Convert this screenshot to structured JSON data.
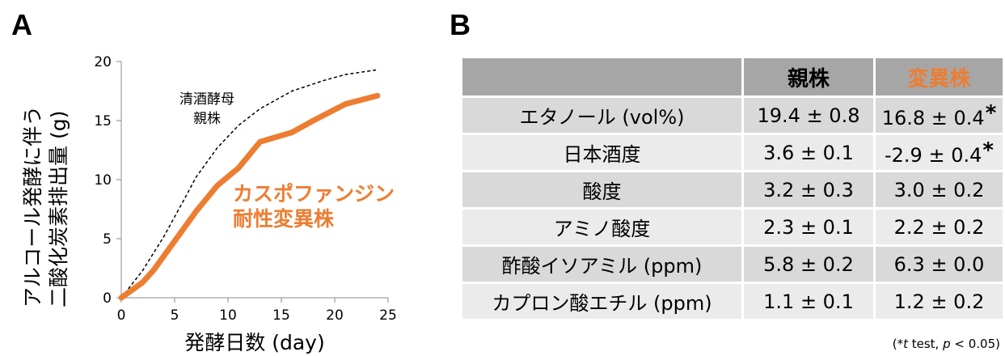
{
  "panel_a_label": "A",
  "panel_b_label": "B",
  "chart_data": {
    "type": "line",
    "xlabel": "発酵日数 (day)",
    "ylabel_lines": [
      "アルコール発酵に伴う",
      "二酸化炭素排出量 (g)"
    ],
    "xlim": [
      0,
      25
    ],
    "ylim": [
      0,
      20
    ],
    "xticks": [
      0,
      5,
      10,
      15,
      20,
      25
    ],
    "yticks": [
      0,
      5,
      10,
      15,
      20
    ],
    "grid": false,
    "series": [
      {
        "name": "清酒酵母 親株",
        "label_lines": [
          "清酒酵母",
          "親株"
        ],
        "style": "dashed",
        "color": "#000000",
        "x": [
          0,
          2,
          4,
          6,
          7,
          9,
          11,
          13,
          16,
          19,
          21,
          24
        ],
        "y": [
          0,
          2.3,
          5.2,
          8.5,
          10.2,
          12.7,
          14.6,
          16.0,
          17.5,
          18.4,
          18.9,
          19.3
        ]
      },
      {
        "name": "カスポファンジン 耐性変異株",
        "label_lines": [
          "カスポファンジン",
          "耐性変異株"
        ],
        "style": "solid",
        "color": "#ed7d31",
        "x": [
          0,
          2,
          3,
          5,
          7,
          9,
          11,
          13,
          16,
          18,
          21,
          24
        ],
        "y": [
          0,
          1.3,
          2.3,
          4.8,
          7.3,
          9.5,
          11.0,
          13.2,
          14.0,
          15.0,
          16.4,
          17.1
        ]
      }
    ]
  },
  "table": {
    "header": [
      "",
      "親株",
      "変異株"
    ],
    "rows": [
      {
        "label": "エタノール (vol%)",
        "parent": "19.4 ± 0.8",
        "mutant": "16.8 ± 0.4",
        "mark": "*"
      },
      {
        "label": "日本酒度",
        "parent": "3.6 ± 0.1",
        "mutant": "-2.9 ± 0.4",
        "mark": "*"
      },
      {
        "label": "酸度",
        "parent": "3.2 ± 0.3",
        "mutant": "3.0 ± 0.2",
        "mark": ""
      },
      {
        "label": "アミノ酸度",
        "parent": "2.3 ± 0.1",
        "mutant": "2.2 ± 0.2",
        "mark": ""
      },
      {
        "label": "酢酸イソアミル (ppm)",
        "parent": "5.8 ± 0.2",
        "mutant": "6.3 ± 0.0",
        "mark": ""
      },
      {
        "label": "カプロン酸エチル (ppm)",
        "parent": "1.1 ± 0.1",
        "mutant": "1.2 ± 0.2",
        "mark": ""
      }
    ],
    "footnote": {
      "pre": "(*",
      "t": "t",
      "mid": " test, ",
      "p": "p",
      "post": " < 0.05)"
    }
  }
}
